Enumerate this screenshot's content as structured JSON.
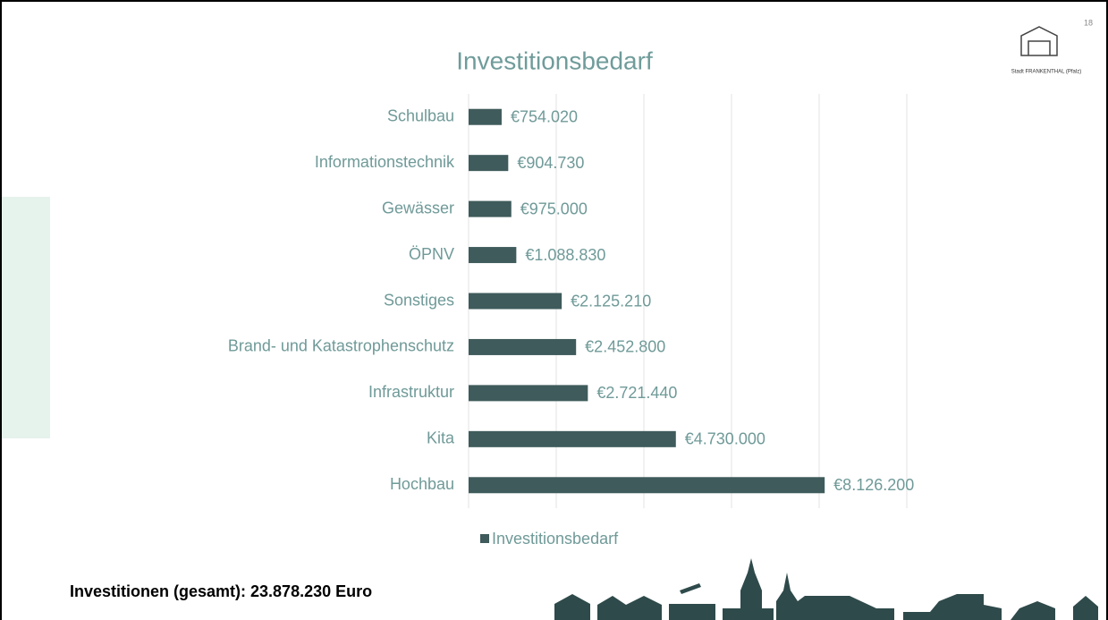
{
  "slide_number": "18",
  "logo_text": "Stadt FRANKENTHAL (Pfalz)",
  "footer": "Investitionen (gesamt): 23.878.230 Euro",
  "chart_data": {
    "type": "bar",
    "orientation": "horizontal",
    "title": "Investitionsbedarf",
    "categories": [
      "Schulbau",
      "Informationstechnik",
      "Gewässer",
      "ÖPNV",
      "Sonstiges",
      "Brand- und Katastrophenschutz",
      "Infrastruktur",
      "Kita",
      "Hochbau"
    ],
    "series": [
      {
        "name": "Investitionsbedarf",
        "color": "#3f5b5b",
        "values": [
          754020,
          904730,
          975000,
          1088830,
          2125210,
          2452800,
          2721440,
          4730000,
          8126200
        ],
        "value_labels": [
          "€754.020",
          "€904.730",
          "€975.000",
          "€1.088.830",
          "€2.125.210",
          "€2.452.800",
          "€2.721.440",
          "€4.730.000",
          "€8.126.200"
        ]
      }
    ],
    "xlim": [
      0,
      10000000
    ],
    "xticks": [
      0,
      2000000,
      4000000,
      6000000,
      8000000,
      10000000
    ],
    "grid": true,
    "legend": "bottom"
  }
}
